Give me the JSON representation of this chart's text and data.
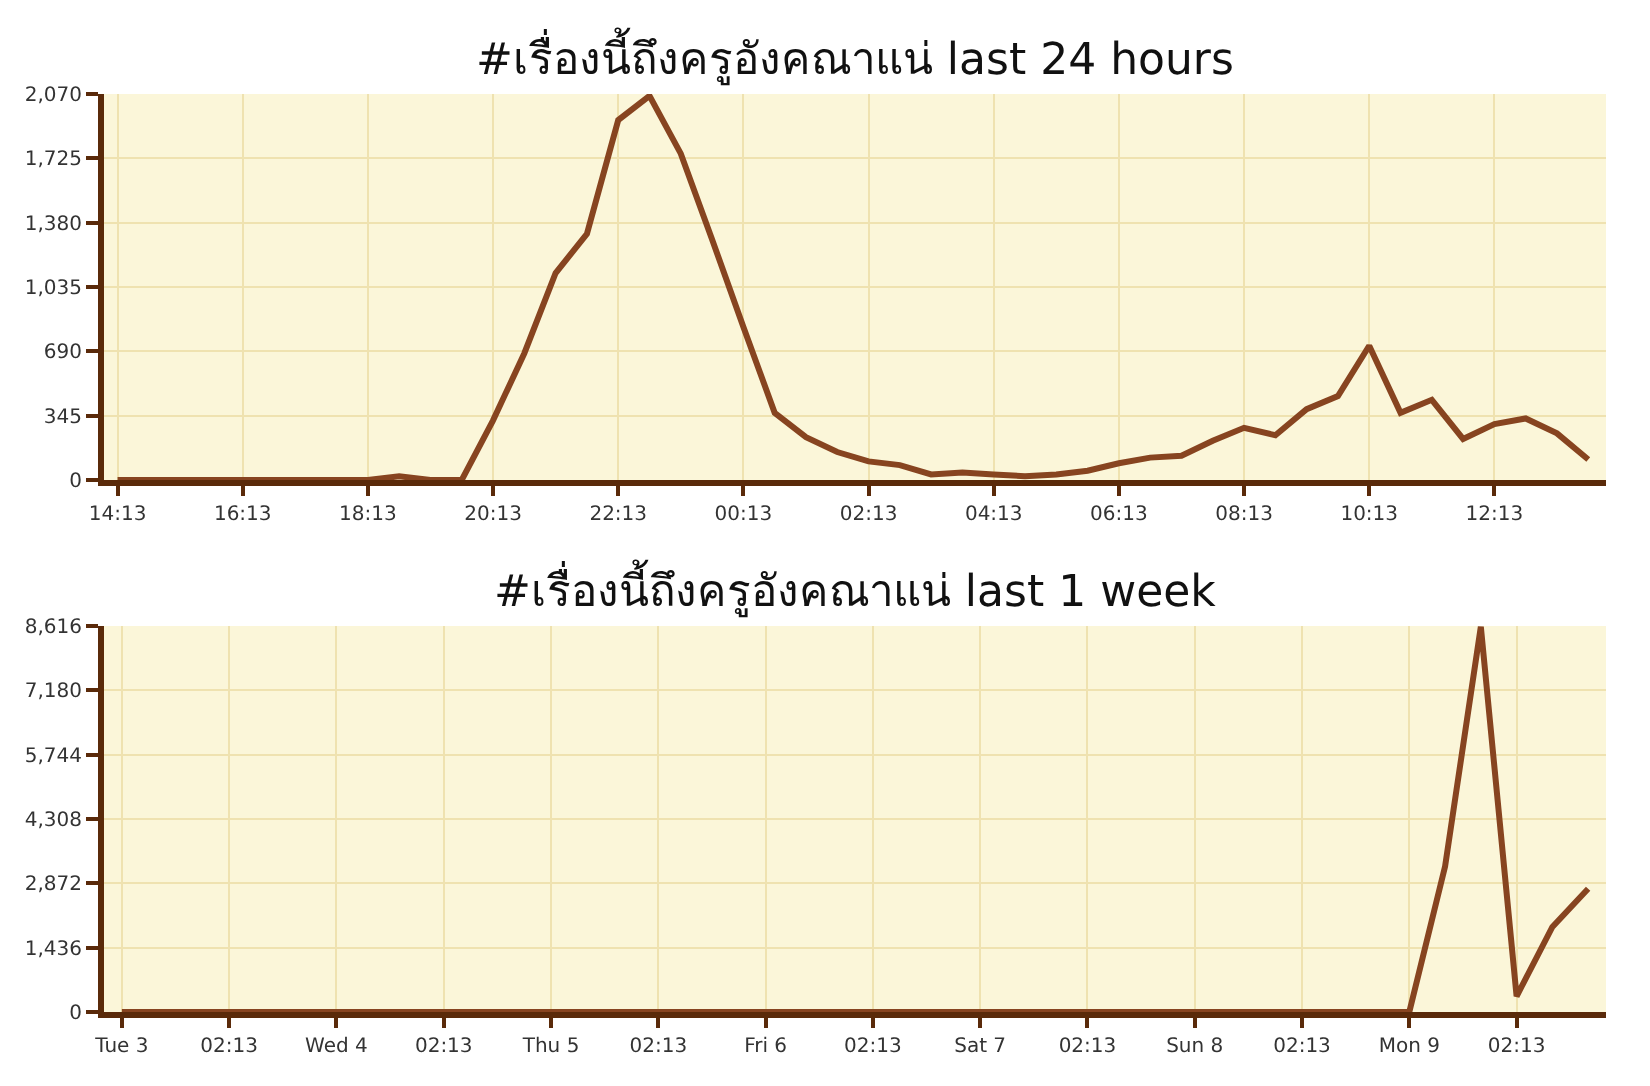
{
  "chart_data": [
    {
      "type": "line",
      "title": "#เรื่องนี้ถึงครูอังคณาแน่ last 24 hours",
      "x": [
        "--11-09T14:13",
        "--11-09T14:43",
        "--11-09T15:13",
        "--11-09T15:43",
        "--11-09T16:13",
        "--11-09T16:43",
        "--11-09T17:13",
        "--11-09T17:43",
        "--11-09T18:13",
        "--11-09T18:43",
        "--11-09T19:13",
        "--11-09T19:43",
        "--11-09T20:13",
        "--11-09T20:43",
        "--11-09T21:13",
        "--11-09T21:43",
        "--11-09T22:13",
        "--11-09T22:43",
        "--11-09T23:13",
        "--11-09T23:43",
        "--11-10T00:13",
        "--11-10T00:43",
        "--11-10T01:13",
        "--11-10T01:43",
        "--11-10T02:13",
        "--11-10T02:43",
        "--11-10T03:13",
        "--11-10T03:43",
        "--11-10T04:13",
        "--11-10T04:43",
        "--11-10T05:13",
        "--11-10T05:43",
        "--11-10T06:13",
        "--11-10T06:43",
        "--11-10T07:13",
        "--11-10T07:43",
        "--11-10T08:13",
        "--11-10T08:43",
        "--11-10T09:13",
        "--11-10T09:43",
        "--11-10T10:13",
        "--11-10T10:43",
        "--11-10T11:13",
        "--11-10T11:43",
        "--11-10T12:13",
        "--11-10T12:43",
        "--11-10T13:13",
        "--11-10T13:43"
      ],
      "series": [
        {
          "color": "#874420",
          "values": [
            0,
            0,
            0,
            0,
            0,
            0,
            0,
            0,
            0,
            20,
            0,
            0,
            320,
            680,
            1110,
            1320,
            1930,
            2060,
            1750,
            1290,
            820,
            360,
            230,
            150,
            100,
            80,
            30,
            40,
            30,
            20,
            30,
            50,
            90,
            120,
            130,
            210,
            280,
            240,
            380,
            450,
            720,
            360,
            430,
            220,
            300,
            330,
            250,
            110
          ]
        }
      ],
      "xlim": [
        "--11-09T14:00",
        "--11-10T14:00"
      ],
      "xticks": [
        {
          "value": "--11-09T14:13",
          "label": "14:13"
        },
        {
          "value": "--11-09T16:13",
          "label": "16:13"
        },
        {
          "value": "--11-09T18:13",
          "label": "18:13"
        },
        {
          "value": "--11-09T20:13",
          "label": "20:13"
        },
        {
          "value": "--11-09T22:13",
          "label": "22:13"
        },
        {
          "value": "--11-10T00:13",
          "label": "00:13"
        },
        {
          "value": "--11-10T02:13",
          "label": "02:13"
        },
        {
          "value": "--11-10T04:13",
          "label": "04:13"
        },
        {
          "value": "--11-10T06:13",
          "label": "06:13"
        },
        {
          "value": "--11-10T08:13",
          "label": "08:13"
        },
        {
          "value": "--11-10T10:13",
          "label": "10:13"
        },
        {
          "value": "--11-10T12:13",
          "label": "12:13"
        }
      ],
      "ylim": [
        0,
        2070
      ],
      "yticks": [
        0,
        345,
        690,
        {
          "value": 1035,
          "label": "1,035"
        },
        {
          "value": 1380,
          "label": "1,380"
        },
        {
          "value": 1725,
          "label": "1,725"
        },
        {
          "value": 2070,
          "label": "2,070"
        }
      ],
      "grid": true,
      "marker": "none",
      "line_style": "solid"
    },
    {
      "type": "line",
      "title": "#เรื่องนี้ถึงครูอังคณาแน่ last 1 week",
      "x": [
        "--11-03T14:13",
        "--11-03T18:13",
        "--11-03T22:13",
        "--11-04T02:13",
        "--11-04T06:13",
        "--11-04T10:13",
        "--11-04T14:13",
        "--11-04T18:13",
        "--11-04T22:13",
        "--11-05T02:13",
        "--11-05T06:13",
        "--11-05T10:13",
        "--11-05T14:13",
        "--11-05T18:13",
        "--11-05T22:13",
        "--11-06T02:13",
        "--11-06T06:13",
        "--11-06T10:13",
        "--11-06T14:13",
        "--11-06T18:13",
        "--11-06T22:13",
        "--11-07T02:13",
        "--11-07T06:13",
        "--11-07T10:13",
        "--11-07T14:13",
        "--11-07T18:13",
        "--11-07T22:13",
        "--11-08T02:13",
        "--11-08T06:13",
        "--11-08T10:13",
        "--11-08T14:13",
        "--11-08T18:13",
        "--11-08T22:13",
        "--11-09T02:13",
        "--11-09T06:13",
        "--11-09T10:13",
        "--11-09T14:13",
        "--11-09T18:13",
        "--11-09T22:13",
        "--11-10T02:13",
        "--11-10T06:13",
        "--11-10T10:13"
      ],
      "series": [
        {
          "color": "#874420",
          "values": [
            0,
            0,
            0,
            0,
            0,
            0,
            0,
            0,
            0,
            0,
            0,
            0,
            0,
            0,
            0,
            0,
            0,
            0,
            0,
            0,
            0,
            0,
            0,
            0,
            0,
            0,
            0,
            0,
            0,
            0,
            0,
            0,
            0,
            0,
            0,
            0,
            0,
            3250,
            8600,
            350,
            1900,
            2750
          ]
        }
      ],
      "xlim": [
        "--11-03T12:13",
        "--11-10T12:13"
      ],
      "xticks": [
        {
          "value": "--11-03T14:13",
          "label": "Tue 3"
        },
        {
          "value": "--11-04T02:13",
          "label": "02:13"
        },
        {
          "value": "--11-04T14:13",
          "label": "Wed 4"
        },
        {
          "value": "--11-05T02:13",
          "label": "02:13"
        },
        {
          "value": "--11-05T14:13",
          "label": "Thu 5"
        },
        {
          "value": "--11-06T02:13",
          "label": "02:13"
        },
        {
          "value": "--11-06T14:13",
          "label": "Fri 6"
        },
        {
          "value": "--11-07T02:13",
          "label": "02:13"
        },
        {
          "value": "--11-07T14:13",
          "label": "Sat 7"
        },
        {
          "value": "--11-08T02:13",
          "label": "02:13"
        },
        {
          "value": "--11-08T14:13",
          "label": "Sun 8"
        },
        {
          "value": "--11-09T02:13",
          "label": "02:13"
        },
        {
          "value": "--11-09T14:13",
          "label": "Mon 9"
        },
        {
          "value": "--11-10T02:13",
          "label": "02:13"
        }
      ],
      "ylim": [
        0,
        8616
      ],
      "yticks": [
        0,
        {
          "value": 1436,
          "label": "1,436"
        },
        {
          "value": 2872,
          "label": "2,872"
        },
        {
          "value": 4308,
          "label": "4,308"
        },
        {
          "value": 5744,
          "label": "5,744"
        },
        {
          "value": 7180,
          "label": "7,180"
        },
        {
          "value": 8616,
          "label": "8,616"
        }
      ],
      "grid": true,
      "marker": "none",
      "line_style": "solid"
    }
  ]
}
